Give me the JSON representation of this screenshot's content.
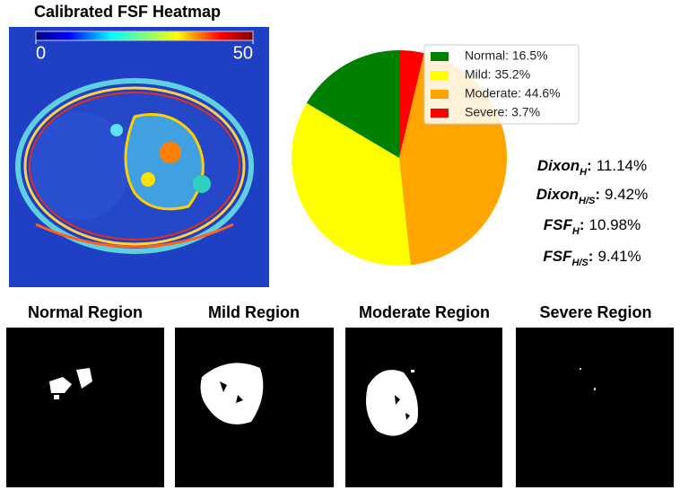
{
  "heatmap": {
    "title": "Calibrated FSF Heatmap",
    "colorbar_ticks": [
      0,
      50
    ],
    "colorbar_lim": [
      0,
      50
    ]
  },
  "chart_data": {
    "type": "pie",
    "categories": [
      "Normal",
      "Mild",
      "Moderate",
      "Severe"
    ],
    "values": [
      16.5,
      35.2,
      44.6,
      3.7
    ],
    "legend_labels": [
      "Normal: 16.5%",
      "Mild: 35.2%",
      "Moderate: 44.6%",
      "Severe: 3.7%"
    ],
    "colors": [
      "#008000",
      "#ffff00",
      "#ffa500",
      "#ff0000"
    ],
    "startangle": 90,
    "counterclock": true,
    "legend": "upper right"
  },
  "metrics": [
    {
      "name": "Dixon",
      "sub": "H",
      "colon": ":",
      "value": "11.14%"
    },
    {
      "name": "Dixon",
      "sub": "H/S",
      "colon": ":",
      "value": "9.42%"
    },
    {
      "name": "FSF",
      "sub": "H",
      "colon": ":",
      "value": "10.98%"
    },
    {
      "name": "FSF",
      "sub": "H/S",
      "colon": ":",
      "value": "9.41%"
    }
  ],
  "regions": [
    "Normal Region",
    "Mild Region",
    "Moderate Region",
    "Severe Region"
  ]
}
